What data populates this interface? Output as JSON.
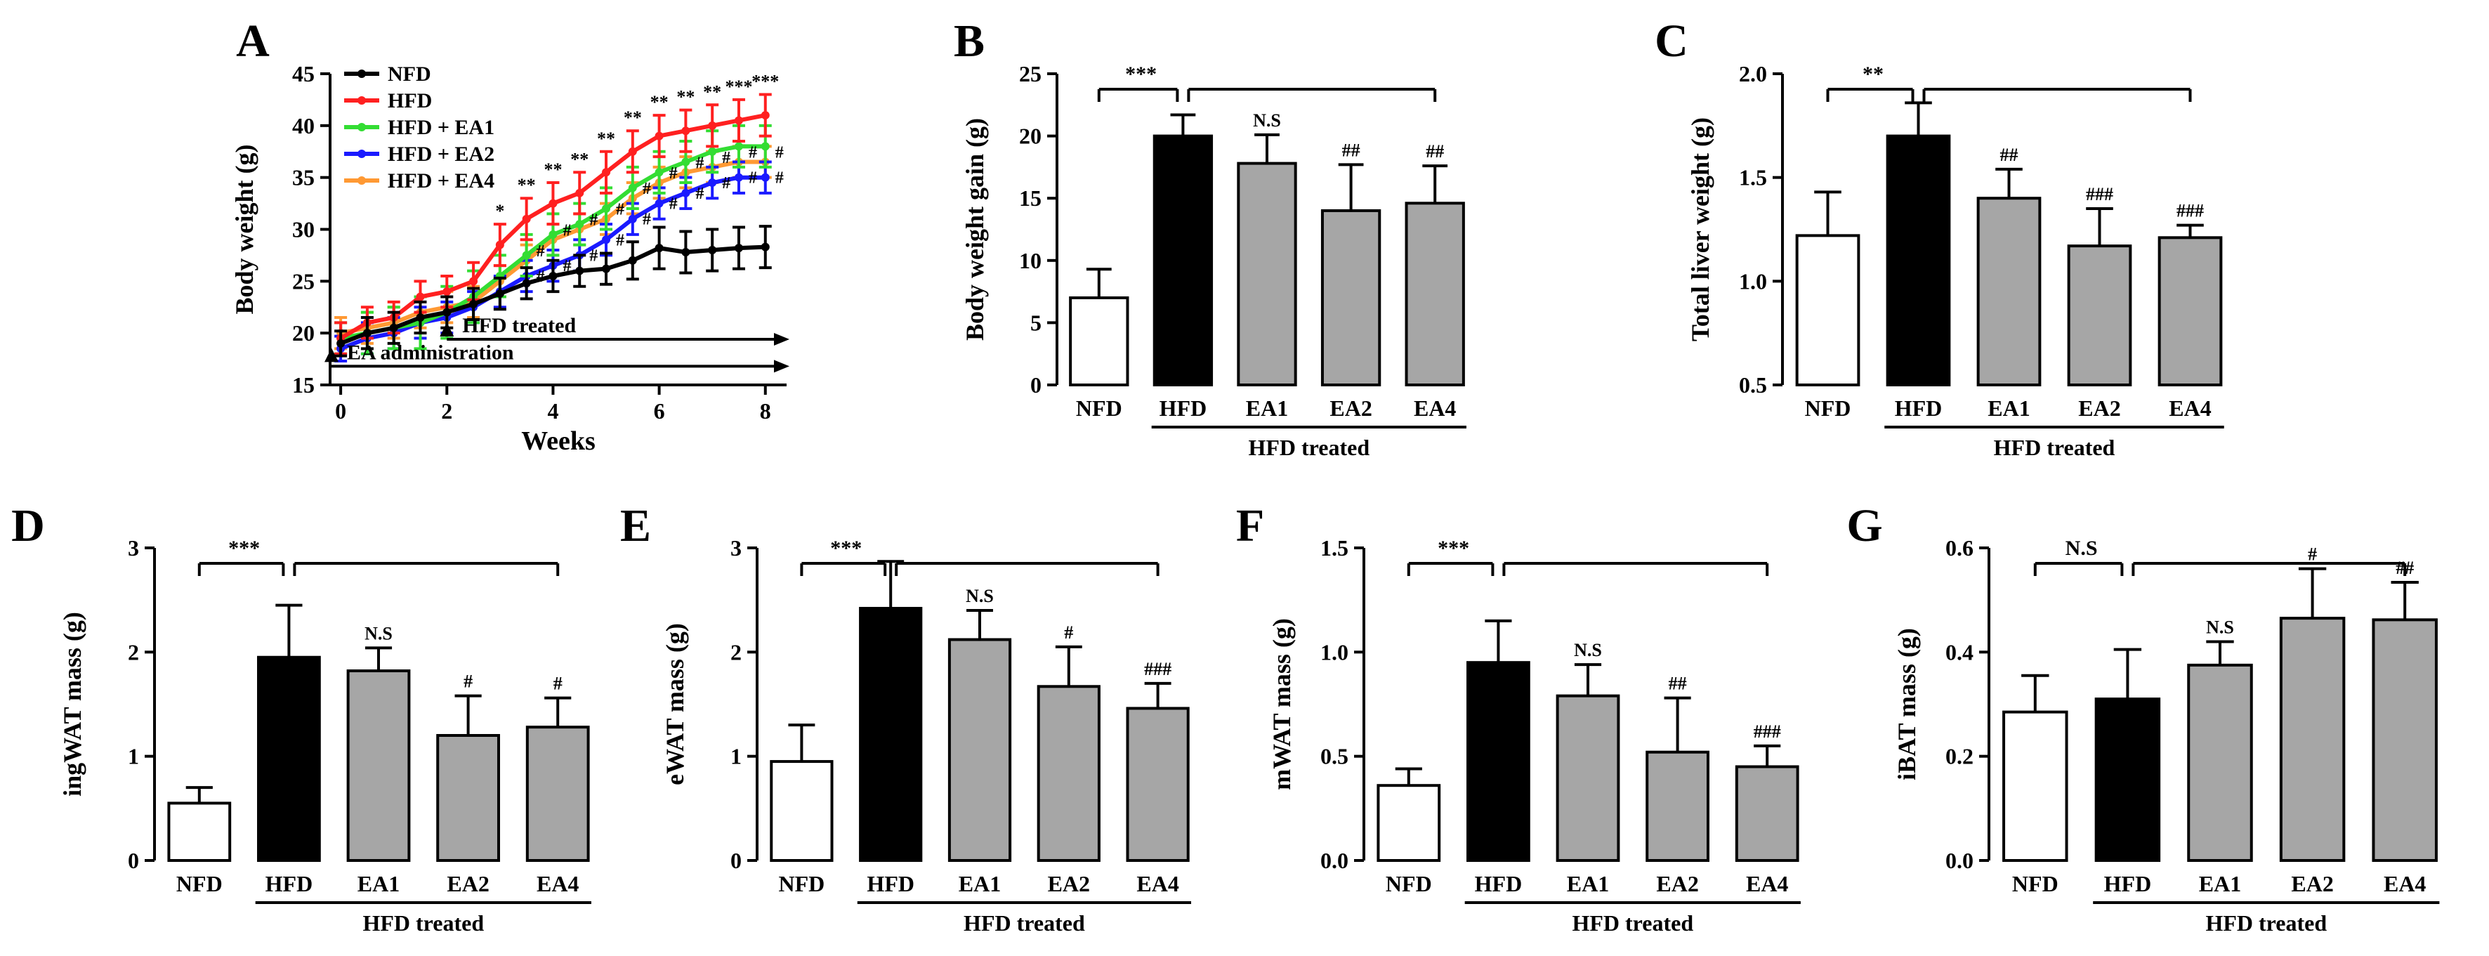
{
  "colors": {
    "black": "#000000",
    "white": "#ffffff",
    "gray": "#a6a6a6",
    "red": "#ff2020",
    "green": "#33dd33",
    "blue": "#1a1aff",
    "orange": "#ff9933"
  },
  "chart_data": [
    {
      "id": "A",
      "panel_label": "A",
      "type": "line",
      "xlabel": "Weeks",
      "ylabel": "Body weight (g)",
      "xlim": [
        -0.2,
        8.4
      ],
      "ylim": [
        15,
        45
      ],
      "xticks": [
        "0",
        "2",
        "4",
        "6",
        "8"
      ],
      "yticks": [
        "15",
        "20",
        "25",
        "30",
        "35",
        "40",
        "45"
      ],
      "x": [
        0,
        0.5,
        1,
        1.5,
        2,
        2.5,
        3,
        3.5,
        4,
        4.5,
        5,
        5.5,
        6,
        6.5,
        7,
        7.5,
        8
      ],
      "series": [
        {
          "name": "NFD",
          "color": "#000000",
          "values": [
            19,
            20,
            20.5,
            21.5,
            22,
            22.8,
            23.8,
            24.8,
            25.5,
            26,
            26.2,
            27,
            28.2,
            27.8,
            28,
            28.2,
            28.3
          ],
          "err": [
            1.2,
            1.5,
            1.5,
            1.5,
            1.5,
            1.5,
            1.5,
            1.5,
            1.5,
            1.5,
            1.5,
            1.8,
            2,
            2,
            2,
            2,
            2
          ]
        },
        {
          "name": "HFD",
          "color": "#ff2020",
          "values": [
            19.5,
            21,
            21.5,
            23.5,
            24,
            25,
            28.5,
            31,
            32.5,
            33.5,
            35.5,
            37.5,
            39,
            39.5,
            40,
            40.5,
            41
          ],
          "err": [
            1.5,
            1.5,
            1.5,
            1.5,
            1.5,
            1.8,
            2,
            2,
            2,
            2,
            2,
            2,
            2,
            2,
            2,
            2,
            2
          ]
        },
        {
          "name": "HFD + EA1",
          "color": "#33dd33",
          "values": [
            19.5,
            20,
            20.5,
            21,
            22,
            23.5,
            25.5,
            27.5,
            29.5,
            30.5,
            32,
            34,
            35.5,
            36.5,
            37.5,
            38,
            38
          ],
          "err": [
            1.5,
            2,
            2,
            2.5,
            2.5,
            2.5,
            2,
            2,
            2,
            2,
            2,
            2,
            2,
            2,
            2,
            2,
            2
          ]
        },
        {
          "name": "HFD + EA2",
          "color": "#1a1aff",
          "values": [
            18.5,
            19.5,
            20,
            21,
            21.5,
            22.5,
            24,
            25.5,
            26.5,
            27.5,
            29,
            31,
            32.5,
            33.5,
            34.5,
            35,
            35
          ],
          "err": [
            1.2,
            1.5,
            1.5,
            1.5,
            1.5,
            1.5,
            1.5,
            1.5,
            1.5,
            1.5,
            1.5,
            1.5,
            1.5,
            1.5,
            1.5,
            1.5,
            1.5
          ]
        },
        {
          "name": "HFD + EA4",
          "color": "#ff9933",
          "values": [
            20,
            20.5,
            21,
            22,
            22.5,
            23,
            25,
            27,
            29,
            30,
            31,
            33,
            34.5,
            35.5,
            36,
            36.5,
            36.5
          ],
          "err": [
            1.5,
            1.5,
            1.5,
            1.5,
            1.5,
            1.5,
            1.5,
            1.5,
            1.5,
            1.5,
            1.5,
            1.5,
            1.5,
            1.5,
            1.5,
            1.5,
            1.5
          ]
        }
      ],
      "stars_x": [
        3,
        3.5,
        4,
        4.5,
        5,
        5.5,
        6,
        6.5,
        7,
        7.5,
        8
      ],
      "stars_text": [
        "*",
        "**",
        "**",
        "**",
        "**",
        "**",
        "**",
        "**",
        "**",
        "***",
        "***"
      ],
      "hash_x": [
        3.5,
        4,
        4.5,
        5,
        5.5,
        6,
        6.5,
        7,
        7.5,
        8
      ],
      "hash_text": "#",
      "annotations": {
        "hfd_treated": "HFD treated",
        "ea_administration": "EA administration"
      }
    },
    {
      "id": "B",
      "panel_label": "B",
      "type": "bar",
      "ylabel": "Body weight gain (g)",
      "ylim": [
        0,
        25
      ],
      "yticks": [
        "0",
        "5",
        "10",
        "15",
        "20",
        "25"
      ],
      "categories": [
        "NFD",
        "HFD",
        "EA1",
        "EA2",
        "EA4"
      ],
      "values": [
        7,
        20,
        17.8,
        14,
        14.6
      ],
      "err": [
        2.3,
        1.7,
        2.3,
        3.7,
        3
      ],
      "marks": [
        "",
        "",
        "N.S",
        "##",
        "##"
      ],
      "top_sig": "***",
      "group_label": "HFD treated"
    },
    {
      "id": "C",
      "panel_label": "C",
      "type": "bar",
      "ylabel": "Total liver weight (g)",
      "ylim": [
        0.5,
        2.0
      ],
      "yticks": [
        "0.5",
        "1.0",
        "1.5",
        "2.0"
      ],
      "categories": [
        "NFD",
        "HFD",
        "EA1",
        "EA2",
        "EA4"
      ],
      "values": [
        1.22,
        1.7,
        1.4,
        1.17,
        1.21
      ],
      "err": [
        0.21,
        0.16,
        0.14,
        0.18,
        0.06
      ],
      "marks": [
        "",
        "",
        "##",
        "###",
        "###"
      ],
      "top_sig": "**",
      "group_label": "HFD treated"
    },
    {
      "id": "D",
      "panel_label": "D",
      "type": "bar",
      "ylabel": "ingWAT mass (g)",
      "ylim": [
        0,
        3
      ],
      "yticks": [
        "0",
        "1",
        "2",
        "3"
      ],
      "categories": [
        "NFD",
        "HFD",
        "EA1",
        "EA2",
        "EA4"
      ],
      "values": [
        0.55,
        1.95,
        1.82,
        1.2,
        1.28
      ],
      "err": [
        0.15,
        0.5,
        0.22,
        0.38,
        0.28
      ],
      "marks": [
        "",
        "",
        "N.S",
        "#",
        "#"
      ],
      "top_sig": "***",
      "group_label": "HFD treated"
    },
    {
      "id": "E",
      "panel_label": "E",
      "type": "bar",
      "ylabel": "eWAT mass (g)",
      "ylim": [
        0,
        3
      ],
      "yticks": [
        "0",
        "1",
        "2",
        "3"
      ],
      "categories": [
        "NFD",
        "HFD",
        "EA1",
        "EA2",
        "EA4"
      ],
      "values": [
        0.95,
        2.42,
        2.12,
        1.67,
        1.46
      ],
      "err": [
        0.35,
        0.45,
        0.28,
        0.38,
        0.24
      ],
      "marks": [
        "",
        "",
        "N.S",
        "#",
        "###"
      ],
      "top_sig": "***",
      "group_label": "HFD treated"
    },
    {
      "id": "F",
      "panel_label": "F",
      "type": "bar",
      "ylabel": "mWAT mass (g)",
      "ylim": [
        0,
        1.5
      ],
      "yticks": [
        "0.0",
        "0.5",
        "1.0",
        "1.5"
      ],
      "categories": [
        "NFD",
        "HFD",
        "EA1",
        "EA2",
        "EA4"
      ],
      "values": [
        0.36,
        0.95,
        0.79,
        0.52,
        0.45
      ],
      "err": [
        0.08,
        0.2,
        0.15,
        0.26,
        0.1
      ],
      "marks": [
        "",
        "",
        "N.S",
        "##",
        "###"
      ],
      "top_sig": "***",
      "group_label": "HFD treated"
    },
    {
      "id": "G",
      "panel_label": "G",
      "type": "bar",
      "ylabel": "iBAT mass (g)",
      "ylim": [
        0,
        0.6
      ],
      "yticks": [
        "0.0",
        "0.2",
        "0.4",
        "0.6"
      ],
      "categories": [
        "NFD",
        "HFD",
        "EA1",
        "EA2",
        "EA4"
      ],
      "values": [
        0.285,
        0.31,
        0.375,
        0.465,
        0.462
      ],
      "err": [
        0.07,
        0.095,
        0.045,
        0.095,
        0.072
      ],
      "marks": [
        "",
        "",
        "N.S",
        "#",
        "##"
      ],
      "top_sig": "N.S",
      "group_label": "HFD treated"
    }
  ]
}
